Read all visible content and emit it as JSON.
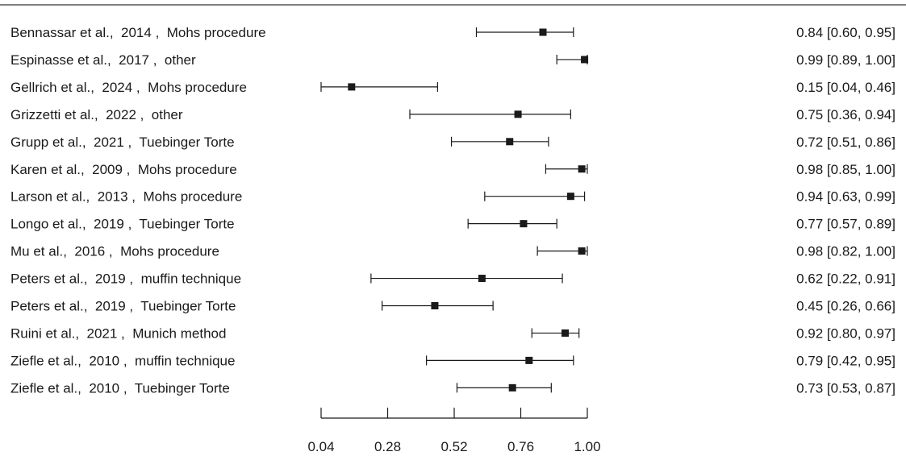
{
  "chart_data": {
    "type": "forest",
    "xlim": [
      0.04,
      1.0
    ],
    "ticks": [
      "0.04",
      "0.28",
      "0.52",
      "0.76",
      "1.00"
    ],
    "marker": "square",
    "colors": {
      "ink": "#1a1a1a",
      "topline": "#555555"
    },
    "studies": [
      {
        "label": "Bennassar et al.,  2014 ,  Mohs procedure",
        "value": 0.84,
        "lo": 0.6,
        "hi": 0.95,
        "ci_text": "0.84 [0.60, 0.95]"
      },
      {
        "label": "Espinasse et al.,  2017 ,  other",
        "value": 0.99,
        "lo": 0.89,
        "hi": 1.0,
        "ci_text": "0.99 [0.89, 1.00]"
      },
      {
        "label": "Gellrich et al.,  2024 ,  Mohs procedure",
        "value": 0.15,
        "lo": 0.04,
        "hi": 0.46,
        "ci_text": "0.15 [0.04, 0.46]"
      },
      {
        "label": "Grizzetti et al.,  2022 ,  other",
        "value": 0.75,
        "lo": 0.36,
        "hi": 0.94,
        "ci_text": "0.75 [0.36, 0.94]"
      },
      {
        "label": "Grupp et al.,  2021 ,  Tuebinger Torte",
        "value": 0.72,
        "lo": 0.51,
        "hi": 0.86,
        "ci_text": "0.72 [0.51, 0.86]"
      },
      {
        "label": "Karen et al.,  2009 ,  Mohs procedure",
        "value": 0.98,
        "lo": 0.85,
        "hi": 1.0,
        "ci_text": "0.98 [0.85, 1.00]"
      },
      {
        "label": "Larson et al.,  2013 ,  Mohs procedure",
        "value": 0.94,
        "lo": 0.63,
        "hi": 0.99,
        "ci_text": "0.94 [0.63, 0.99]"
      },
      {
        "label": "Longo et al.,  2019 ,  Tuebinger Torte",
        "value": 0.77,
        "lo": 0.57,
        "hi": 0.89,
        "ci_text": "0.77 [0.57, 0.89]"
      },
      {
        "label": "Mu et al.,  2016 ,  Mohs procedure",
        "value": 0.98,
        "lo": 0.82,
        "hi": 1.0,
        "ci_text": "0.98 [0.82, 1.00]"
      },
      {
        "label": "Peters et al.,  2019 ,  muffin technique",
        "value": 0.62,
        "lo": 0.22,
        "hi": 0.91,
        "ci_text": "0.62 [0.22, 0.91]"
      },
      {
        "label": "Peters et al.,  2019 ,  Tuebinger Torte",
        "value": 0.45,
        "lo": 0.26,
        "hi": 0.66,
        "ci_text": "0.45 [0.26, 0.66]"
      },
      {
        "label": "Ruini et al.,  2021 ,  Munich method",
        "value": 0.92,
        "lo": 0.8,
        "hi": 0.97,
        "ci_text": "0.92 [0.80, 0.97]"
      },
      {
        "label": "Ziefle et al.,  2010 ,  muffin technique",
        "value": 0.79,
        "lo": 0.42,
        "hi": 0.95,
        "ci_text": "0.79 [0.42, 0.95]"
      },
      {
        "label": "Ziefle et al.,  2010 ,  Tuebinger Torte",
        "value": 0.73,
        "lo": 0.53,
        "hi": 0.87,
        "ci_text": "0.73 [0.53, 0.87]"
      }
    ]
  }
}
